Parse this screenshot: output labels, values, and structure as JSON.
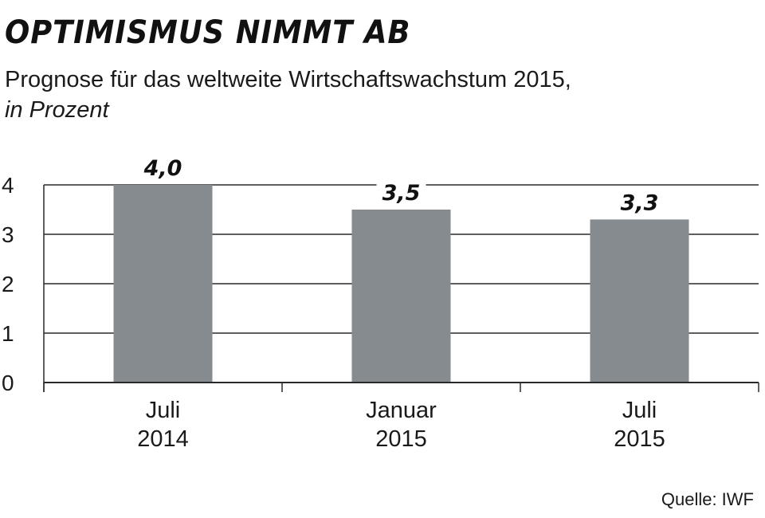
{
  "colors": {
    "bar": "#868b8f",
    "gridline": "#2a2a2a",
    "text": "#1a1a1a"
  },
  "chart_data": {
    "type": "bar",
    "title": "OPTIMISMUS NIMMT AB",
    "subtitle": "Prognose für das weltweite Wirtschaftswachstum 2015,",
    "unit": "in Prozent",
    "source": "Quelle: IWF",
    "categories": [
      [
        "Juli",
        "2014"
      ],
      [
        "Januar",
        "2015"
      ],
      [
        "Juli",
        "2015"
      ]
    ],
    "values": [
      4.0,
      3.5,
      3.3
    ],
    "value_labels": [
      "4,0",
      "3,5",
      "3,3"
    ],
    "ylim": [
      0,
      4
    ],
    "yticks": [
      0,
      1,
      2,
      3,
      4
    ],
    "grid": true,
    "xlabel": "",
    "ylabel": ""
  }
}
